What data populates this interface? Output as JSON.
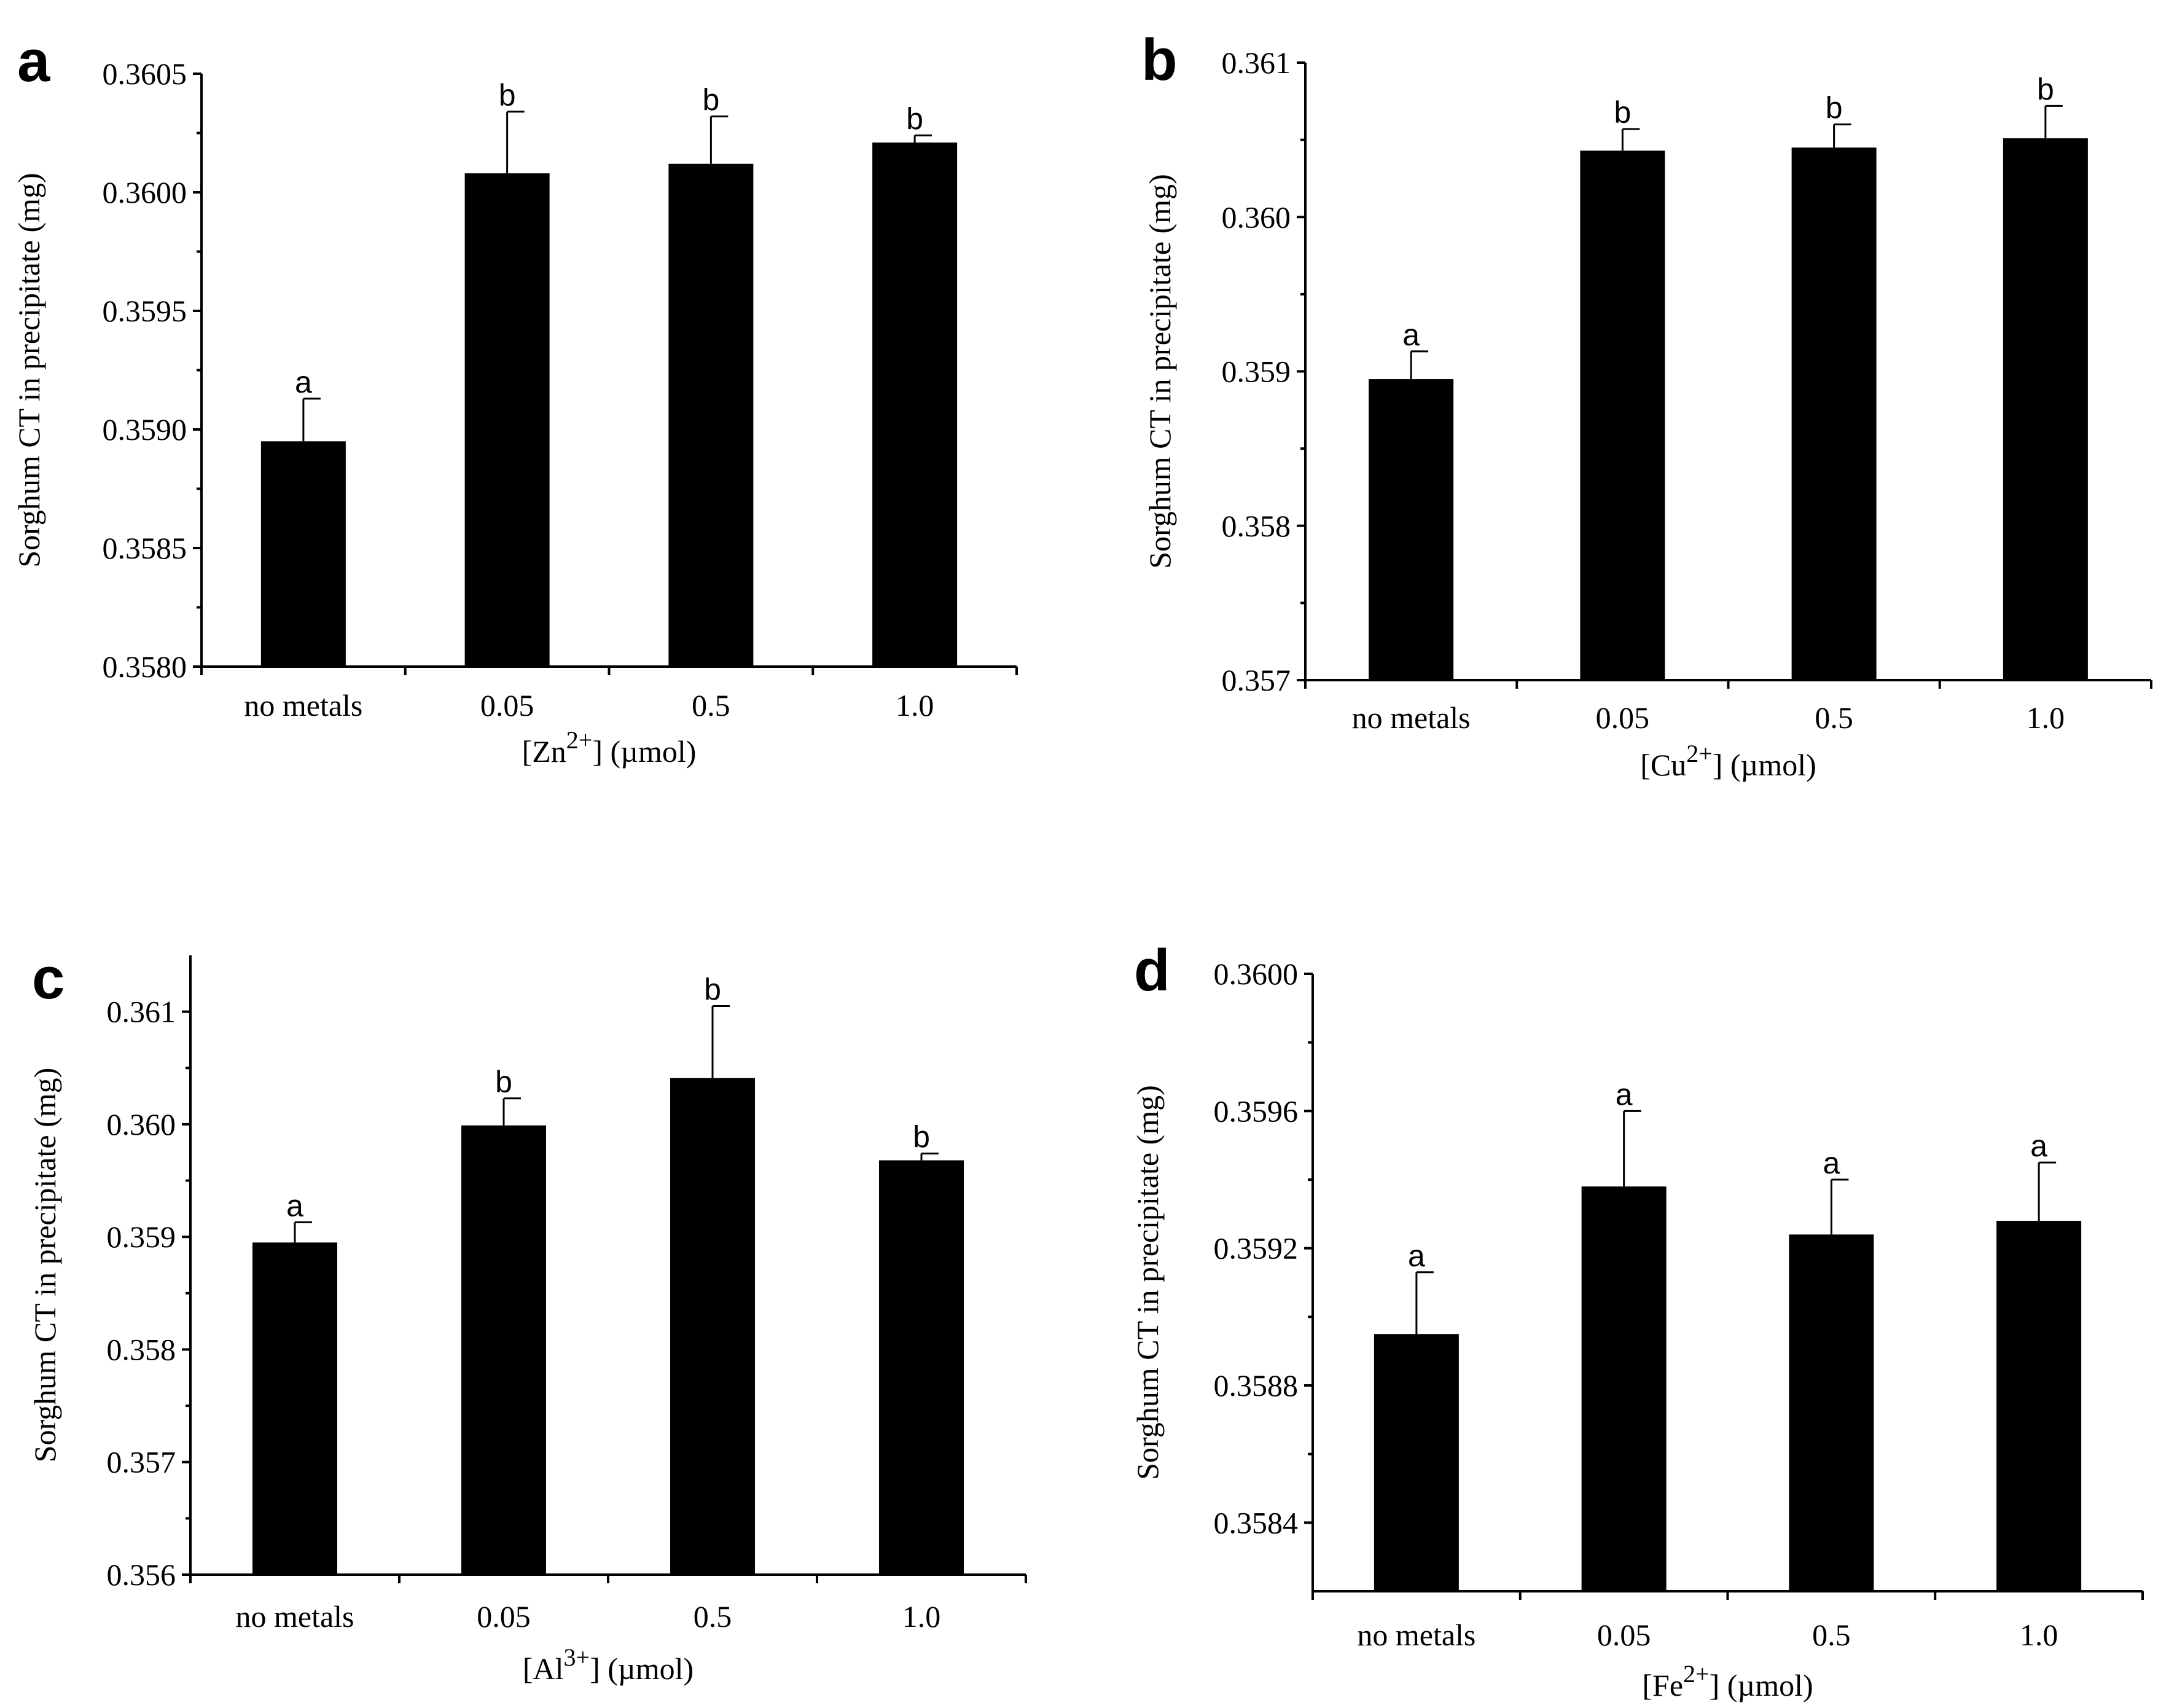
{
  "chart_data": [
    {
      "panel": "a",
      "type": "bar",
      "ylabel": "Sorghum CT in precipitate (mg)",
      "xlabel": {
        "prefix": "[Zn",
        "superscript": "2+",
        "suffix": "]  (µmol)"
      },
      "categories": [
        "no metals",
        "0.05",
        "0.5",
        "1.0"
      ],
      "values": [
        0.35895,
        0.36008,
        0.36012,
        0.36021
      ],
      "errors": [
        0.00018,
        0.00026,
        0.0002,
        3e-05
      ],
      "significance": [
        "a",
        "b",
        "b",
        "b"
      ],
      "ylim": [
        0.358,
        0.3605
      ],
      "yticks": [
        0.358,
        0.3585,
        0.359,
        0.3595,
        0.36,
        0.3605
      ],
      "ytick_labels": [
        "0.3580",
        "0.3585",
        "0.3590",
        "0.3595",
        "0.3600",
        "0.3605"
      ]
    },
    {
      "panel": "b",
      "type": "bar",
      "ylabel": "Sorghum CT in precipitate (mg)",
      "xlabel": {
        "prefix": "[Cu",
        "superscript": "2+",
        "suffix": "]  (µmol)"
      },
      "categories": [
        "no metals",
        "0.05",
        "0.5",
        "1.0"
      ],
      "values": [
        0.35895,
        0.36043,
        0.36045,
        0.36051
      ],
      "errors": [
        0.00018,
        0.00014,
        0.00015,
        0.00021
      ],
      "significance": [
        "a",
        "b",
        "b",
        "b"
      ],
      "ylim": [
        0.357,
        0.361
      ],
      "yticks": [
        0.357,
        0.358,
        0.359,
        0.36,
        0.361
      ],
      "ytick_labels": [
        "0.357",
        "0.358",
        "0.359",
        "0.360",
        "0.361"
      ]
    },
    {
      "panel": "c",
      "type": "bar",
      "ylabel": "Sorghum CT in precipitate (mg)",
      "xlabel": {
        "prefix": "[Al",
        "superscript": "3+",
        "suffix": "]  (µmol)"
      },
      "categories": [
        "no metals",
        "0.05",
        "0.5",
        "1.0"
      ],
      "values": [
        0.35895,
        0.35999,
        0.36041,
        0.35968
      ],
      "errors": [
        0.00018,
        0.00024,
        0.00064,
        6e-05
      ],
      "significance": [
        "a",
        "b",
        "b",
        "b"
      ],
      "ylim": [
        0.356,
        0.3615
      ],
      "yticks": [
        0.356,
        0.357,
        0.358,
        0.359,
        0.36,
        0.361
      ],
      "ytick_labels": [
        "0.356",
        "0.357",
        "0.358",
        "0.359",
        "0.360",
        "0.361"
      ]
    },
    {
      "panel": "d",
      "type": "bar",
      "ylabel": "Sorghum CT in precipitate (mg)",
      "xlabel": {
        "prefix": "[Fe",
        "superscript": "2+",
        "suffix": "]  (µmol)"
      },
      "categories": [
        "no metals",
        "0.05",
        "0.5",
        "1.0"
      ],
      "values": [
        0.35895,
        0.35938,
        0.35924,
        0.35928
      ],
      "errors": [
        0.00018,
        0.00022,
        0.00016,
        0.00017
      ],
      "significance": [
        "a",
        "a",
        "a",
        "a"
      ],
      "ylim": [
        0.3582,
        0.36
      ],
      "yticks": [
        0.3584,
        0.3588,
        0.3592,
        0.3596,
        0.36
      ],
      "ytick_labels": [
        "0.3584",
        "0.3588",
        "0.3592",
        "0.3596",
        "0.3600"
      ]
    }
  ]
}
